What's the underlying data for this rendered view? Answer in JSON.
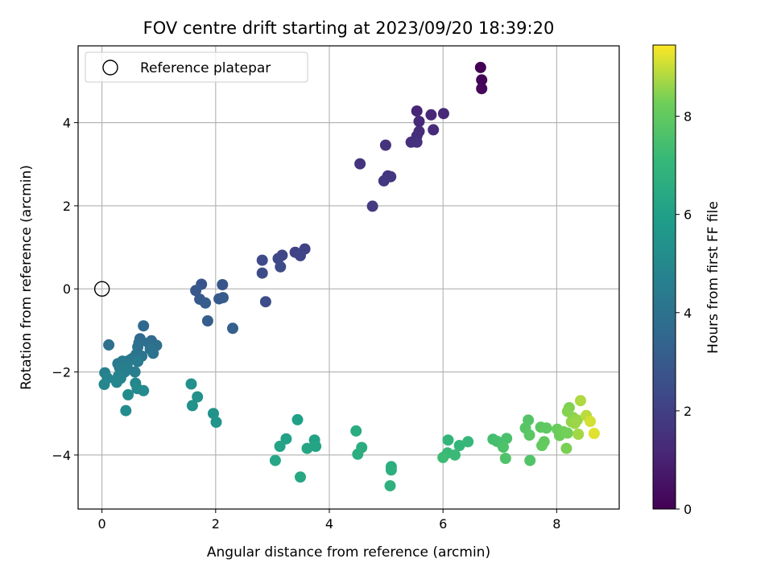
{
  "chart_data": {
    "type": "scatter",
    "title": "FOV centre drift starting at 2023/09/20 18:39:20",
    "xlabel": "Angular distance from reference (arcmin)",
    "ylabel": "Rotation from reference (arcmin)",
    "xlim": [
      -0.42,
      9.1
    ],
    "ylim": [
      -5.3,
      5.85
    ],
    "xticks": [
      0,
      2,
      4,
      6,
      8
    ],
    "yticks": [
      -4,
      -2,
      0,
      2,
      4
    ],
    "grid": true,
    "legend": {
      "placement": "top-left",
      "entries": [
        "Reference platepar"
      ]
    },
    "colorbar": {
      "label": "Hours from first FF file",
      "range": [
        0,
        9.45
      ],
      "ticks": [
        0,
        2,
        4,
        6,
        8
      ],
      "colormap": "viridis"
    },
    "reference_point": {
      "x": 0,
      "y": 0,
      "label": "Reference platepar"
    },
    "series": [
      {
        "points": [
          [
            6.66,
            5.33,
            0.0
          ],
          [
            6.68,
            5.03,
            0.1
          ],
          [
            6.68,
            4.82,
            0.2
          ],
          [
            5.54,
            4.28,
            1.1
          ],
          [
            5.79,
            4.19,
            1.15
          ],
          [
            6.01,
            4.22,
            1.2
          ],
          [
            5.58,
            4.03,
            1.25
          ],
          [
            5.83,
            3.83,
            1.3
          ],
          [
            5.58,
            3.79,
            1.35
          ],
          [
            5.54,
            3.68,
            1.4
          ],
          [
            5.44,
            3.53,
            1.45
          ],
          [
            5.54,
            3.53,
            1.5
          ],
          [
            4.99,
            3.46,
            1.55
          ],
          [
            4.54,
            3.01,
            1.6
          ],
          [
            5.03,
            2.72,
            1.65
          ],
          [
            5.08,
            2.7,
            1.7
          ],
          [
            4.96,
            2.6,
            1.75
          ],
          [
            4.76,
            1.99,
            1.8
          ],
          [
            3.57,
            0.96,
            2.1
          ],
          [
            3.4,
            0.88,
            2.15
          ],
          [
            3.49,
            0.8,
            2.2
          ],
          [
            3.17,
            0.81,
            2.25
          ],
          [
            3.1,
            0.73,
            2.3
          ],
          [
            2.82,
            0.69,
            2.35
          ],
          [
            3.14,
            0.53,
            2.4
          ],
          [
            2.82,
            0.38,
            2.45
          ],
          [
            2.88,
            -0.31,
            2.5
          ],
          [
            1.75,
            0.11,
            2.8
          ],
          [
            2.12,
            0.1,
            2.85
          ],
          [
            1.65,
            -0.04,
            2.9
          ],
          [
            1.72,
            -0.25,
            2.95
          ],
          [
            2.06,
            -0.24,
            3.0
          ],
          [
            2.13,
            -0.21,
            3.05
          ],
          [
            1.82,
            -0.34,
            3.1
          ],
          [
            1.86,
            -0.77,
            3.15
          ],
          [
            2.3,
            -0.95,
            3.2
          ],
          [
            0.73,
            -0.89,
            3.6
          ],
          [
            0.67,
            -1.2,
            3.65
          ],
          [
            0.87,
            -1.25,
            3.7
          ],
          [
            0.65,
            -1.3,
            3.75
          ],
          [
            0.82,
            -1.3,
            3.8
          ],
          [
            0.96,
            -1.36,
            3.85
          ],
          [
            0.12,
            -1.35,
            3.9
          ],
          [
            0.63,
            -1.4,
            3.95
          ],
          [
            0.85,
            -1.45,
            4.0
          ],
          [
            0.9,
            -1.55,
            4.05
          ],
          [
            0.6,
            -1.58,
            4.1
          ],
          [
            0.7,
            -1.62,
            4.15
          ],
          [
            0.53,
            -1.68,
            4.2
          ],
          [
            0.48,
            -1.72,
            4.25
          ],
          [
            0.36,
            -1.74,
            4.3
          ],
          [
            0.28,
            -1.8,
            4.35
          ],
          [
            0.63,
            -1.75,
            4.4
          ],
          [
            0.44,
            -1.85,
            4.45
          ],
          [
            0.31,
            -1.9,
            4.5
          ],
          [
            0.58,
            -2.0,
            4.55
          ],
          [
            0.4,
            -2.0,
            4.6
          ],
          [
            0.05,
            -2.02,
            4.65
          ],
          [
            0.29,
            -2.1,
            4.7
          ],
          [
            0.33,
            -2.15,
            4.75
          ],
          [
            0.1,
            -2.15,
            4.8
          ],
          [
            0.26,
            -2.25,
            4.85
          ],
          [
            0.04,
            -2.3,
            4.9
          ],
          [
            0.59,
            -2.27,
            4.95
          ],
          [
            0.62,
            -2.4,
            5.0
          ],
          [
            0.73,
            -2.45,
            5.05
          ],
          [
            0.46,
            -2.55,
            5.1
          ],
          [
            0.42,
            -2.93,
            5.15
          ],
          [
            1.57,
            -2.29,
            5.3
          ],
          [
            1.68,
            -2.6,
            5.35
          ],
          [
            1.59,
            -2.81,
            5.4
          ],
          [
            1.96,
            -3.0,
            5.45
          ],
          [
            2.01,
            -3.21,
            5.5
          ],
          [
            3.44,
            -3.15,
            6.0
          ],
          [
            3.24,
            -3.61,
            6.05
          ],
          [
            3.74,
            -3.64,
            6.1
          ],
          [
            3.13,
            -3.79,
            6.15
          ],
          [
            3.76,
            -3.79,
            6.2
          ],
          [
            3.61,
            -3.84,
            6.25
          ],
          [
            3.05,
            -4.13,
            6.3
          ],
          [
            3.49,
            -4.53,
            6.35
          ],
          [
            4.47,
            -3.42,
            6.5
          ],
          [
            4.57,
            -3.82,
            6.55
          ],
          [
            4.5,
            -3.98,
            6.6
          ],
          [
            5.09,
            -4.28,
            6.65
          ],
          [
            5.09,
            -4.36,
            6.7
          ],
          [
            5.07,
            -4.74,
            6.75
          ],
          [
            6.09,
            -3.64,
            7.0
          ],
          [
            6.29,
            -3.77,
            7.05
          ],
          [
            6.44,
            -3.68,
            7.1
          ],
          [
            6.08,
            -3.95,
            7.15
          ],
          [
            6.21,
            -4.0,
            7.2
          ],
          [
            6.0,
            -4.06,
            7.25
          ],
          [
            6.88,
            -3.62,
            7.4
          ],
          [
            6.95,
            -3.67,
            7.45
          ],
          [
            7.03,
            -3.73,
            7.5
          ],
          [
            7.12,
            -3.6,
            7.55
          ],
          [
            7.06,
            -3.81,
            7.6
          ],
          [
            7.1,
            -4.08,
            7.65
          ],
          [
            7.53,
            -4.13,
            7.7
          ],
          [
            7.5,
            -3.16,
            7.75
          ],
          [
            7.45,
            -3.35,
            7.8
          ],
          [
            7.52,
            -3.52,
            7.85
          ],
          [
            7.72,
            -3.33,
            7.9
          ],
          [
            7.82,
            -3.35,
            7.95
          ],
          [
            7.78,
            -3.68,
            8.0
          ],
          [
            7.74,
            -3.77,
            8.05
          ],
          [
            8.01,
            -3.38,
            8.15
          ],
          [
            8.05,
            -3.53,
            8.2
          ],
          [
            8.12,
            -3.44,
            8.25
          ],
          [
            8.19,
            -3.47,
            8.3
          ],
          [
            8.17,
            -3.84,
            8.35
          ],
          [
            8.22,
            -2.86,
            8.4
          ],
          [
            8.19,
            -2.95,
            8.45
          ],
          [
            8.29,
            -3.1,
            8.5
          ],
          [
            8.26,
            -3.2,
            8.55
          ],
          [
            8.36,
            -3.16,
            8.6
          ],
          [
            8.32,
            -3.24,
            8.65
          ],
          [
            8.38,
            -3.5,
            8.7
          ],
          [
            8.42,
            -2.69,
            8.8
          ],
          [
            8.52,
            -3.05,
            8.9
          ],
          [
            8.59,
            -3.19,
            9.1
          ],
          [
            8.66,
            -3.48,
            9.2
          ]
        ]
      }
    ]
  }
}
